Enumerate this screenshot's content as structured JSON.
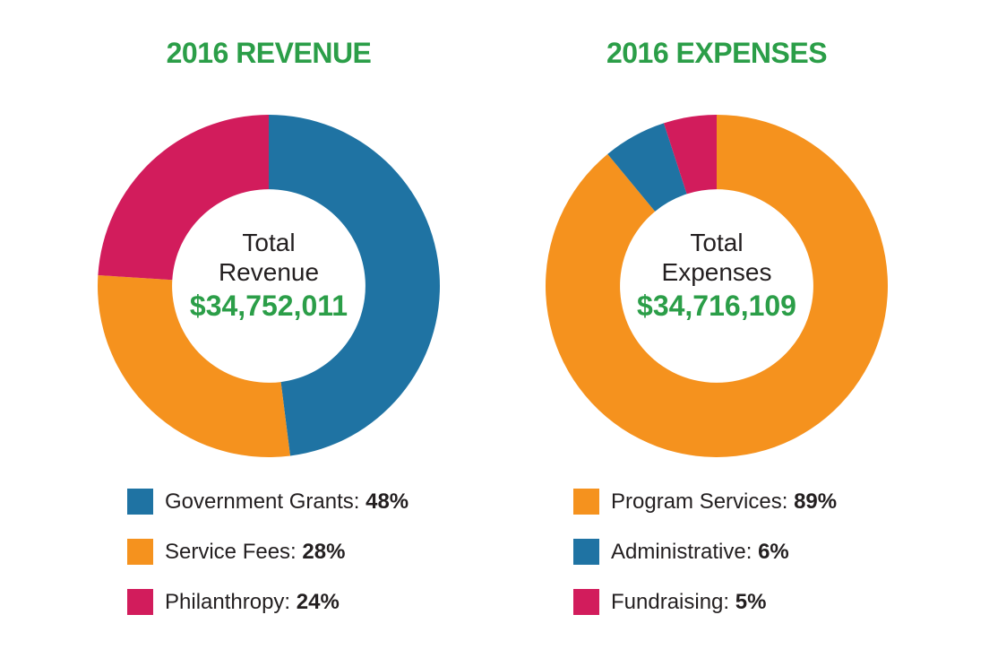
{
  "page": {
    "background": "#ffffff"
  },
  "colors": {
    "accent_green": "#2b9e48",
    "blue": "#1f73a3",
    "orange": "#f5921e",
    "pink": "#d21c5c",
    "text_dark": "#231f20"
  },
  "chart_data": [
    {
      "type": "pie",
      "variant": "donut",
      "title": "2016 REVENUE",
      "center_label": [
        "Total",
        "Revenue"
      ],
      "center_value": "$34,752,011",
      "start_angle": "top",
      "direction": "clockwise",
      "legend_position": "below-left",
      "unit": "%",
      "segments": [
        {
          "label": "Government Grants",
          "legend_label": "Government Grants:",
          "value": 48,
          "value_label": "48%",
          "color": "#1f73a3"
        },
        {
          "label": "Service Fees",
          "legend_label": "Service Fees:",
          "value": 28,
          "value_label": "28%",
          "color": "#f5921e"
        },
        {
          "label": "Philanthropy",
          "legend_label": "Philanthropy:",
          "value": 24,
          "value_label": "24%",
          "color": "#d21c5c"
        }
      ]
    },
    {
      "type": "pie",
      "variant": "donut",
      "title": "2016 EXPENSES",
      "center_label": [
        "Total",
        "Expenses"
      ],
      "center_value": "$34,716,109",
      "start_angle": "top",
      "direction": "clockwise",
      "legend_position": "below-left",
      "unit": "%",
      "segments": [
        {
          "label": "Program Services",
          "legend_label": "Program Services:",
          "value": 89,
          "value_label": "89%",
          "color": "#f5921e"
        },
        {
          "label": "Administrative",
          "legend_label": "Administrative:",
          "value": 6,
          "value_label": "6%",
          "color": "#1f73a3"
        },
        {
          "label": "Fundraising",
          "legend_label": "Fundraising:",
          "value": 5,
          "value_label": "5%",
          "color": "#d21c5c"
        }
      ]
    }
  ]
}
